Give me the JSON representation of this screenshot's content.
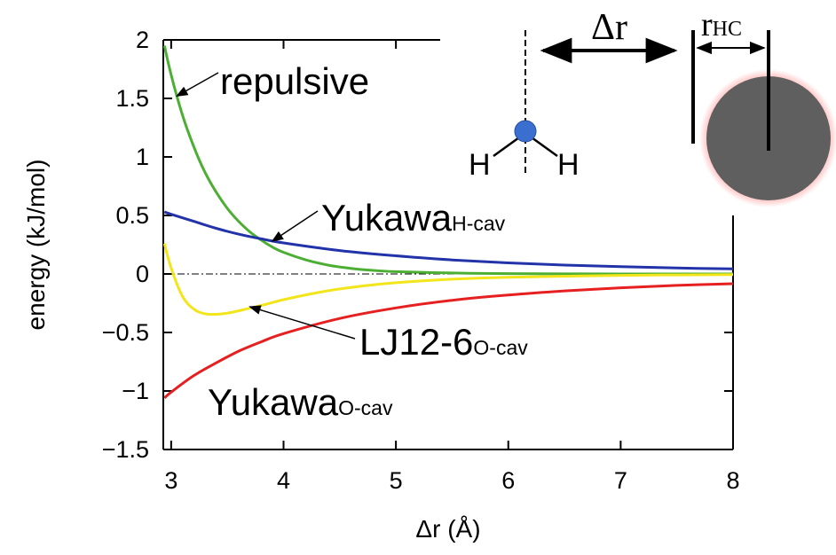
{
  "chart_data": {
    "type": "line",
    "xlabel": "Δr (Å)",
    "ylabel": "energy (kJ/mol)",
    "xlim": [
      2.93,
      8
    ],
    "ylim": [
      -1.5,
      2
    ],
    "xticks": [
      3,
      4,
      5,
      6,
      7,
      8
    ],
    "yticks": [
      2,
      1.5,
      1,
      0.5,
      0,
      -0.5,
      -1,
      -1.5
    ],
    "ytick_labels": [
      "2",
      "1.5",
      "1",
      "0.5",
      "0",
      "−0.5",
      "−1",
      "−1.5"
    ],
    "xtick_labels": [
      "3",
      "4",
      "5",
      "6",
      "7",
      "8"
    ],
    "zero_line": true,
    "series": [
      {
        "key": "repulsive",
        "color": "#4caf34",
        "x": [
          2.94,
          3.0,
          3.1,
          3.2,
          3.3,
          3.4,
          3.5,
          3.6,
          3.7,
          3.8,
          3.9,
          4.0,
          4.2,
          4.4,
          4.6,
          4.8,
          5.0,
          5.5,
          6.0,
          7.0,
          8.0
        ],
        "y": [
          1.95,
          1.7,
          1.36,
          1.09,
          0.87,
          0.7,
          0.56,
          0.45,
          0.36,
          0.29,
          0.23,
          0.185,
          0.12,
          0.075,
          0.048,
          0.03,
          0.02,
          0.008,
          0.003,
          0.0,
          0.0
        ]
      },
      {
        "key": "yukawa_h",
        "color": "#2233aa",
        "x": [
          2.94,
          3.0,
          3.2,
          3.4,
          3.6,
          3.8,
          4.0,
          4.5,
          5.0,
          5.5,
          6.0,
          6.5,
          7.0,
          7.5,
          8.0
        ],
        "y": [
          0.53,
          0.51,
          0.45,
          0.39,
          0.34,
          0.3,
          0.265,
          0.2,
          0.155,
          0.12,
          0.095,
          0.076,
          0.062,
          0.051,
          0.043
        ]
      },
      {
        "key": "lj12_6",
        "color": "#f2e51b",
        "x": [
          2.94,
          3.0,
          3.1,
          3.2,
          3.3,
          3.4,
          3.5,
          3.6,
          3.8,
          4.0,
          4.3,
          4.6,
          5.0,
          5.5,
          6.0,
          7.0,
          8.0
        ],
        "y": [
          0.26,
          0.05,
          -0.19,
          -0.3,
          -0.34,
          -0.345,
          -0.335,
          -0.315,
          -0.27,
          -0.22,
          -0.16,
          -0.115,
          -0.075,
          -0.045,
          -0.028,
          -0.012,
          -0.005
        ]
      },
      {
        "key": "yukawa_o",
        "color": "#e62020",
        "x": [
          2.94,
          3.0,
          3.2,
          3.4,
          3.6,
          3.8,
          4.0,
          4.5,
          5.0,
          5.5,
          6.0,
          6.5,
          7.0,
          7.5,
          8.0
        ],
        "y": [
          -1.06,
          -1.01,
          -0.87,
          -0.76,
          -0.66,
          -0.58,
          -0.51,
          -0.38,
          -0.29,
          -0.225,
          -0.18,
          -0.145,
          -0.118,
          -0.098,
          -0.083
        ]
      }
    ],
    "annotations": {
      "repulsive": {
        "main": "repulsive",
        "sub": "",
        "arrow_to": [
          3.05,
          1.52
        ]
      },
      "yukawa_h": {
        "main": "Yukawa",
        "sub": "H-cav",
        "arrow_to": [
          3.9,
          0.28
        ]
      },
      "lj12_6": {
        "main": "LJ12-6",
        "sub": "O-cav",
        "arrow_to": [
          3.7,
          -0.28
        ]
      },
      "yukawa_o": {
        "main": "Yukawa",
        "sub": "O-cav",
        "arrow_to": null
      }
    }
  },
  "schematic": {
    "delta_r_label": "Δr",
    "r_hc_main": "r",
    "r_hc_sub": "HC",
    "atom_label_left": "H",
    "atom_label_right": "H",
    "oxygen_color": "#3a6fd0",
    "cavity_color": "#5f5f5f",
    "cavity_glow_color": "#ff6b6b"
  }
}
